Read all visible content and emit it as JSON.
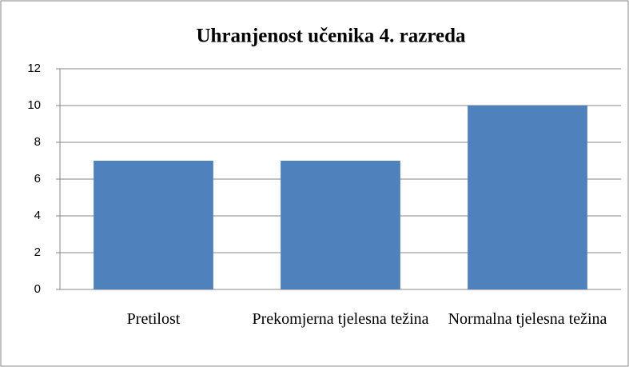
{
  "chart_data": {
    "type": "bar",
    "title": "Uhranjenost učenika 4. razreda",
    "categories": [
      "Pretilost",
      "Prekomjerna tjelesna težina",
      "Normalna tjelesna težina"
    ],
    "values": [
      7,
      7,
      10
    ],
    "color": "#4f81bd",
    "ylim": [
      0,
      12
    ],
    "yticks": [
      0,
      2,
      4,
      6,
      8,
      10,
      12
    ],
    "grid": true
  }
}
